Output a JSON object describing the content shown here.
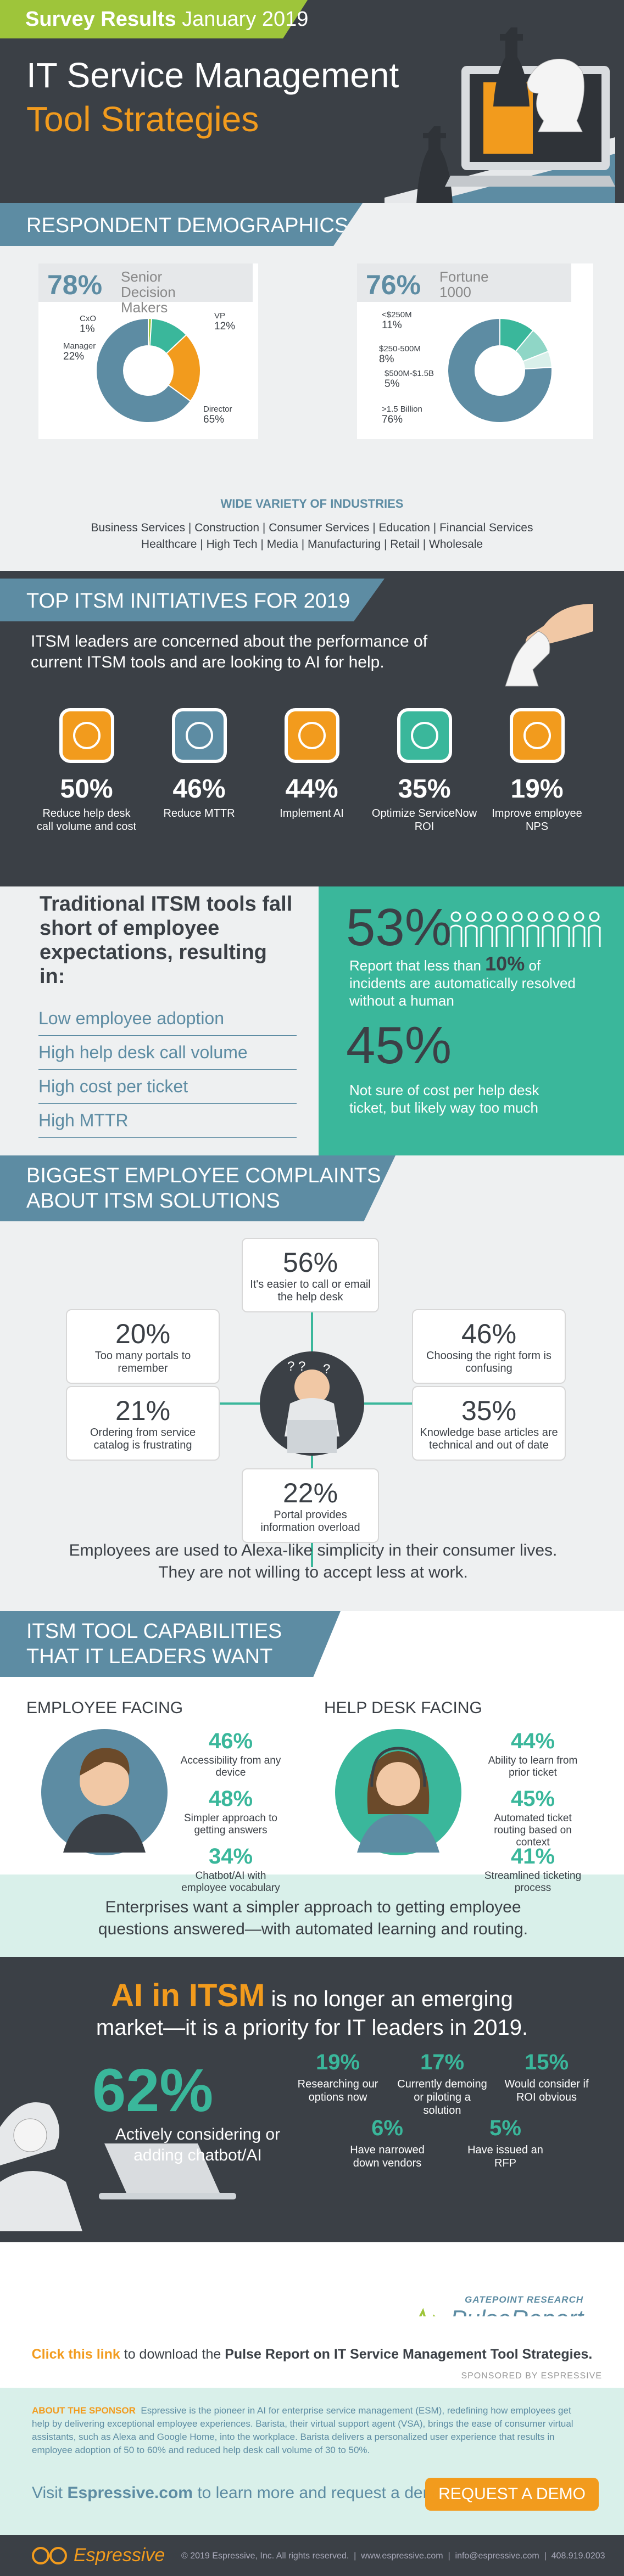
{
  "header": {
    "survey_label": "Survey Results",
    "date": "January 2019",
    "title_line1": "IT Service Management",
    "title_line2": "Tool Strategies"
  },
  "demographics": {
    "heading": "RESPONDENT DEMOGRAPHICS",
    "left": {
      "big": "78%",
      "caption": "Senior Decision Makers",
      "slices": [
        {
          "label": "CxO",
          "value": "1%"
        },
        {
          "label": "VP",
          "value": "12%"
        },
        {
          "label": "Manager",
          "value": "22%"
        },
        {
          "label": "Director",
          "value": "65%"
        }
      ]
    },
    "right": {
      "big": "76%",
      "caption": "Fortune 1000",
      "slices": [
        {
          "label": "<$250M",
          "value": "11%"
        },
        {
          "label": "$250-500M",
          "value": "8%"
        },
        {
          "label": "$500M-$1.5B",
          "value": "5%"
        },
        {
          "label": ">1.5 Billion",
          "value": "76%"
        }
      ]
    },
    "industries_heading": "WIDE VARIETY OF INDUSTRIES",
    "industries_line1": "Business Services | Construction | Consumer Services | Education | Financial Services",
    "industries_line2": "Healthcare | High Tech | Media | Manufacturing | Retail | Wholesale"
  },
  "initiatives": {
    "heading": "TOP ITSM INITIATIVES FOR 2019",
    "intro": "ITSM leaders are concerned about the performance of current ITSM tools and are looking to AI for help.",
    "items": [
      {
        "pct": "50%",
        "label": "Reduce help desk call volume and cost"
      },
      {
        "pct": "46%",
        "label": "Reduce MTTR"
      },
      {
        "pct": "44%",
        "label": "Implement AI"
      },
      {
        "pct": "35%",
        "label": "Optimize ServiceNow ROI"
      },
      {
        "pct": "19%",
        "label": "Improve employee NPS"
      }
    ]
  },
  "traditional": {
    "heading": "Traditional ITSM tools fall short of employee expectations, resulting in:",
    "bullets": [
      "Low employee adoption",
      "High help desk call volume",
      "High cost per ticket",
      "High MTTR"
    ],
    "stat1": "53%",
    "stat1_text_a": "Report that less than",
    "stat1_text_b": "10%",
    "stat1_text_c": "of incidents are automatically resolved without a human",
    "stat2": "45%",
    "stat2_text": "Not sure of cost per help desk ticket, but likely way too much"
  },
  "complaints": {
    "heading_line1": "BIGGEST EMPLOYEE COMPLAINTS",
    "heading_line2": "ABOUT ITSM SOLUTIONS",
    "items": [
      {
        "pct": "56%",
        "label": "It's easier to call or email the help desk"
      },
      {
        "pct": "20%",
        "label": "Too many portals to remember"
      },
      {
        "pct": "46%",
        "label": "Choosing the right form is confusing"
      },
      {
        "pct": "21%",
        "label": "Ordering from service catalog is frustrating"
      },
      {
        "pct": "35%",
        "label": "Knowledge base articles are technical and out of date"
      },
      {
        "pct": "22%",
        "label": "Portal provides information overload"
      }
    ],
    "footer": "Employees are used to Alexa-like simplicity in their consumer lives. They are not willing to accept less at work."
  },
  "capabilities": {
    "heading_line1": "ITSM TOOL CAPABILITIES",
    "heading_line2": "THAT IT LEADERS WANT",
    "employee_title": "EMPLOYEE FACING",
    "employee": [
      {
        "pct": "46%",
        "label": "Accessibility from any device"
      },
      {
        "pct": "48%",
        "label": "Simpler approach to getting answers"
      },
      {
        "pct": "34%",
        "label": "Chatbot/AI with employee vocabulary"
      }
    ],
    "helpdesk_title": "HELP DESK FACING",
    "helpdesk": [
      {
        "pct": "44%",
        "label": "Ability to learn from prior ticket"
      },
      {
        "pct": "45%",
        "label": "Automated ticket routing based on context"
      },
      {
        "pct": "41%",
        "label": "Streamlined ticketing process"
      }
    ],
    "footer": "Enterprises want a simpler approach to getting employee questions answered—with automated learning and routing."
  },
  "ai": {
    "title_bold": "AI in ITSM",
    "title_rest": "is no longer an emerging",
    "title_line2": "market—it is a priority for IT leaders in 2019.",
    "big": "62%",
    "big_label": "Actively considering or adding chatbot/AI",
    "stats": [
      {
        "pct": "19%",
        "label": "Researching our options now"
      },
      {
        "pct": "17%",
        "label": "Currently demoing or piloting a solution"
      },
      {
        "pct": "15%",
        "label": "Would consider if ROI obvious"
      },
      {
        "pct": "6%",
        "label": "Have narrowed down vendors"
      },
      {
        "pct": "5%",
        "label": "Have issued an RFP"
      }
    ],
    "logo_top": "GATEPOINT RESEARCH",
    "logo_name": "PulseReport"
  },
  "download": {
    "link_text": "Click this link",
    "rest": "to download the",
    "report": "Pulse Report on IT Service Management Tool Strategies.",
    "sponsored": "SPONSORED BY ESPRESSIVE"
  },
  "sponsor": {
    "label": "ABOUT THE SPONSOR",
    "text": "Espressive is the pioneer in AI for enterprise service management (ESM), redefining how employees get help by delivering exceptional employee experiences. Barista, their virtual support agent (VSA), brings the ease of consumer virtual assistants, such as Alexa and Google Home, into the workplace. Barista delivers a personalized user experience that results in employee adoption of 50 to 60% and reduced help desk call volume of 30 to 50%.",
    "visit": "Visit",
    "site": "Espressive.com",
    "visit_rest": "to learn more and request a demo.",
    "demo_button": "REQUEST A DEMO"
  },
  "footer": {
    "brand": "Espressive",
    "copyright": "© 2019 Espressive, Inc. All rights reserved.",
    "website": "www.espressive.com",
    "email": "info@espressive.com",
    "phone": "408.919.0203"
  },
  "colors": {
    "dark": "#3b4046",
    "teal": "#3ab79b",
    "orange": "#f29b1d",
    "blue": "#5d8ca3",
    "green": "#9ec53a"
  }
}
